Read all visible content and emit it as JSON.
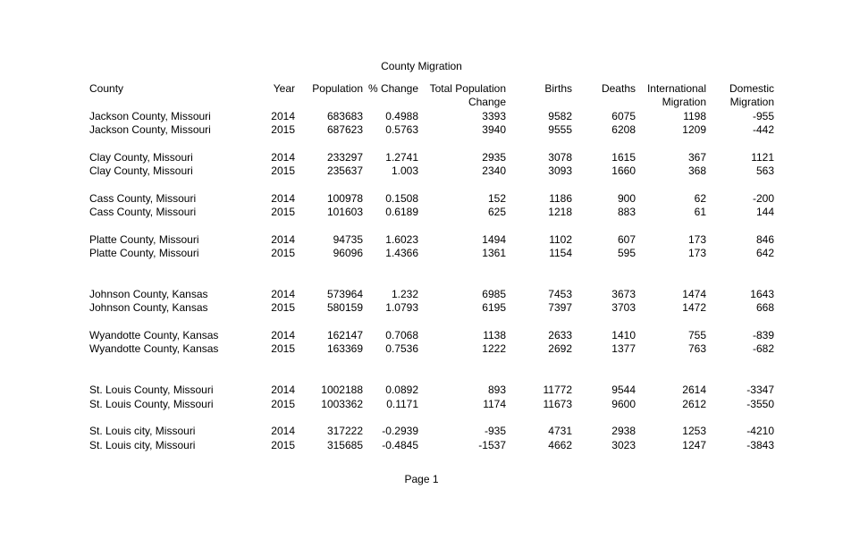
{
  "page": {
    "title": "County Migration",
    "footer": "Page 1"
  },
  "table": {
    "header_line1": [
      "County",
      "Year",
      "Population",
      "% Change",
      "Total Population",
      "Births",
      "Deaths",
      "International",
      "Domestic"
    ],
    "header_line2": [
      "",
      "",
      "",
      "",
      "Change",
      "",
      "",
      "Migration",
      "Migration"
    ],
    "groups": [
      {
        "blank_lines_after": 1,
        "rows": [
          {
            "county": "Jackson County, Missouri",
            "year": "2014",
            "population": "683683",
            "pct_change": "0.4988",
            "total_pop_change": "3393",
            "births": "9582",
            "deaths": "6075",
            "intl_migration": "1198",
            "domestic_migration": "-955"
          },
          {
            "county": "Jackson County, Missouri",
            "year": "2015",
            "population": "687623",
            "pct_change": "0.5763",
            "total_pop_change": "3940",
            "births": "9555",
            "deaths": "6208",
            "intl_migration": "1209",
            "domestic_migration": "-442"
          }
        ]
      },
      {
        "blank_lines_after": 1,
        "rows": [
          {
            "county": "Clay County, Missouri",
            "year": "2014",
            "population": "233297",
            "pct_change": "1.2741",
            "total_pop_change": "2935",
            "births": "3078",
            "deaths": "1615",
            "intl_migration": "367",
            "domestic_migration": "1121"
          },
          {
            "county": "Clay County, Missouri",
            "year": "2015",
            "population": "235637",
            "pct_change": "1.003",
            "total_pop_change": "2340",
            "births": "3093",
            "deaths": "1660",
            "intl_migration": "368",
            "domestic_migration": "563"
          }
        ]
      },
      {
        "blank_lines_after": 1,
        "rows": [
          {
            "county": "Cass County, Missouri",
            "year": "2014",
            "population": "100978",
            "pct_change": "0.1508",
            "total_pop_change": "152",
            "births": "1186",
            "deaths": "900",
            "intl_migration": "62",
            "domestic_migration": "-200"
          },
          {
            "county": "Cass County, Missouri",
            "year": "2015",
            "population": "101603",
            "pct_change": "0.6189",
            "total_pop_change": "625",
            "births": "1218",
            "deaths": "883",
            "intl_migration": "61",
            "domestic_migration": "144"
          }
        ]
      },
      {
        "blank_lines_after": 2,
        "rows": [
          {
            "county": "Platte County, Missouri",
            "year": "2014",
            "population": "94735",
            "pct_change": "1.6023",
            "total_pop_change": "1494",
            "births": "1102",
            "deaths": "607",
            "intl_migration": "173",
            "domestic_migration": "846"
          },
          {
            "county": "Platte County, Missouri",
            "year": "2015",
            "population": "96096",
            "pct_change": "1.4366",
            "total_pop_change": "1361",
            "births": "1154",
            "deaths": "595",
            "intl_migration": "173",
            "domestic_migration": "642"
          }
        ]
      },
      {
        "blank_lines_after": 1,
        "rows": [
          {
            "county": "Johnson County, Kansas",
            "year": "2014",
            "population": "573964",
            "pct_change": "1.232",
            "total_pop_change": "6985",
            "births": "7453",
            "deaths": "3673",
            "intl_migration": "1474",
            "domestic_migration": "1643"
          },
          {
            "county": "Johnson County, Kansas",
            "year": "2015",
            "population": "580159",
            "pct_change": "1.0793",
            "total_pop_change": "6195",
            "births": "7397",
            "deaths": "3703",
            "intl_migration": "1472",
            "domestic_migration": "668"
          }
        ]
      },
      {
        "blank_lines_after": 2,
        "rows": [
          {
            "county": "Wyandotte County, Kansas",
            "year": "2014",
            "population": "162147",
            "pct_change": "0.7068",
            "total_pop_change": "1138",
            "births": "2633",
            "deaths": "1410",
            "intl_migration": "755",
            "domestic_migration": "-839"
          },
          {
            "county": "Wyandotte County, Kansas",
            "year": "2015",
            "population": "163369",
            "pct_change": "0.7536",
            "total_pop_change": "1222",
            "births": "2692",
            "deaths": "1377",
            "intl_migration": "763",
            "domestic_migration": "-682"
          }
        ]
      },
      {
        "blank_lines_after": 1,
        "rows": [
          {
            "county": "St. Louis County, Missouri",
            "year": "2014",
            "population": "1002188",
            "pct_change": "0.0892",
            "total_pop_change": "893",
            "births": "11772",
            "deaths": "9544",
            "intl_migration": "2614",
            "domestic_migration": "-3347"
          },
          {
            "county": "St. Louis County, Missouri",
            "year": "2015",
            "population": "1003362",
            "pct_change": "0.1171",
            "total_pop_change": "1174",
            "births": "11673",
            "deaths": "9600",
            "intl_migration": "2612",
            "domestic_migration": "-3550"
          }
        ]
      },
      {
        "blank_lines_after": 0,
        "rows": [
          {
            "county": "St. Louis city, Missouri",
            "year": "2014",
            "population": "317222",
            "pct_change": "-0.2939",
            "total_pop_change": "-935",
            "births": "4731",
            "deaths": "2938",
            "intl_migration": "1253",
            "domestic_migration": "-4210"
          },
          {
            "county": "St. Louis city, Missouri",
            "year": "2015",
            "population": "315685",
            "pct_change": "-0.4845",
            "total_pop_change": "-1537",
            "births": "4662",
            "deaths": "3023",
            "intl_migration": "1247",
            "domestic_migration": "-3843"
          }
        ]
      }
    ]
  }
}
